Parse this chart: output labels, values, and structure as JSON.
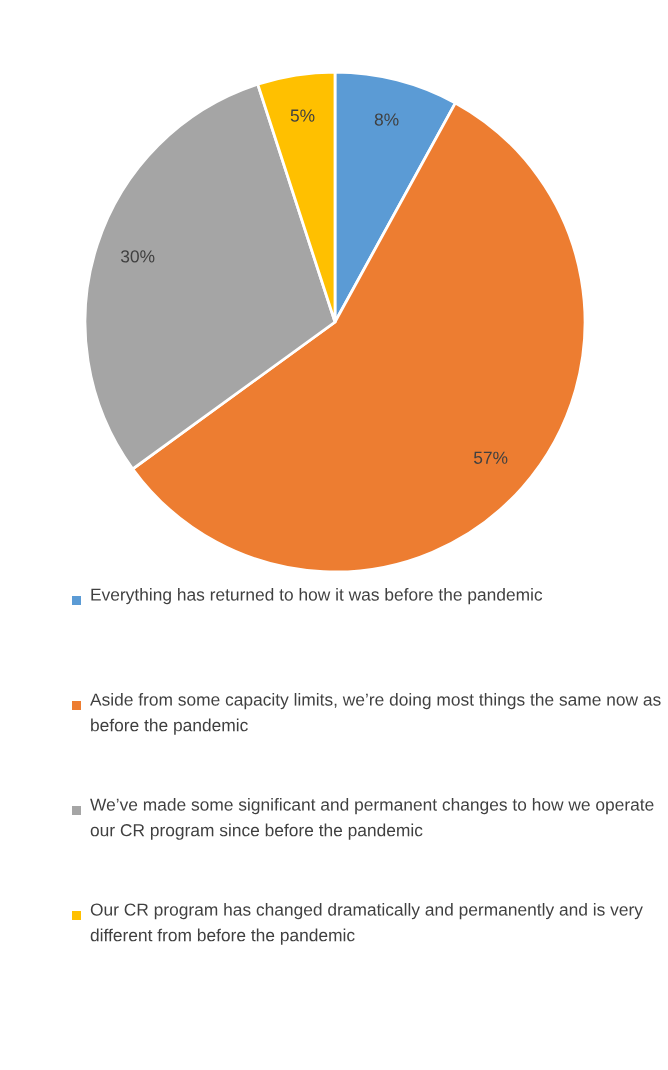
{
  "chart_data": {
    "type": "pie",
    "categories": [
      "Everything has returned to how it was before the pandemic",
      "Aside from some capacity limits, we’re doing most things the same now as before the pandemic",
      "We’ve made some significant and permanent changes to how we operate our CR program since before the pandemic",
      "Our CR program has changed dramatically and permanently and is very different from before the pandemic"
    ],
    "values": [
      8,
      57,
      30,
      5
    ],
    "colors": [
      "#5b9bd5",
      "#ed7d31",
      "#a5a5a5",
      "#ffc000"
    ],
    "value_labels": [
      "8%",
      "57%",
      "30%",
      "5%"
    ],
    "legend": "bottom"
  }
}
